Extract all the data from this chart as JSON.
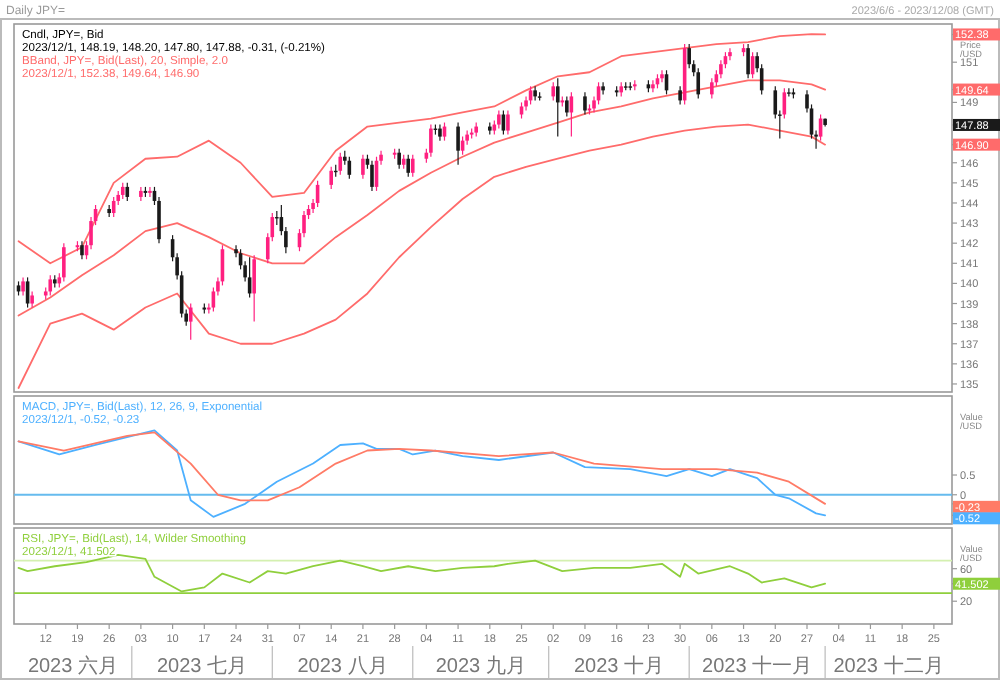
{
  "chart_data": [
    {
      "type": "candlestick",
      "title": "Daily JPY=",
      "subtitle": "2023/6/6 - 2023/12/08 (GMT)",
      "ylabel": "Price /USD",
      "tick_labels": "y",
      "xlim": [
        "2023-06-05",
        "2023-12-29"
      ],
      "ylim": [
        134.6,
        152.9
      ],
      "yticks": [
        135,
        136,
        137,
        138,
        139,
        140,
        141,
        142,
        143,
        144,
        145,
        146,
        149,
        151,
        152.38,
        149.64,
        147.88,
        {
          "value": 146.9,
          "label": "146.90"
        }
      ],
      "x": [
        "2023-06-06",
        "2023-06-07",
        "2023-06-08",
        "2023-06-09",
        "2023-06-12",
        "2023-06-13",
        "2023-06-14",
        "2023-06-15",
        "2023-06-16",
        "2023-06-19",
        "2023-06-20",
        "2023-06-21",
        "2023-06-22",
        "2023-06-23",
        "2023-06-26",
        "2023-06-27",
        "2023-06-28",
        "2023-06-29",
        "2023-06-30",
        "2023-07-03",
        "2023-07-04",
        "2023-07-05",
        "2023-07-06",
        "2023-07-07",
        "2023-07-10",
        "2023-07-11",
        "2023-07-12",
        "2023-07-13",
        "2023-07-14",
        "2023-07-17",
        "2023-07-18",
        "2023-07-19",
        "2023-07-20",
        "2023-07-21",
        "2023-07-24",
        "2023-07-25",
        "2023-07-26",
        "2023-07-27",
        "2023-07-28",
        "2023-07-31",
        "2023-08-01",
        "2023-08-02",
        "2023-08-03",
        "2023-08-04",
        "2023-08-07",
        "2023-08-08",
        "2023-08-09",
        "2023-08-10",
        "2023-08-11",
        "2023-08-14",
        "2023-08-15",
        "2023-08-16",
        "2023-08-17",
        "2023-08-18",
        "2023-08-21",
        "2023-08-22",
        "2023-08-23",
        "2023-08-24",
        "2023-08-25",
        "2023-08-28",
        "2023-08-29",
        "2023-08-30",
        "2023-08-31",
        "2023-09-01",
        "2023-09-04",
        "2023-09-05",
        "2023-09-06",
        "2023-09-07",
        "2023-09-08",
        "2023-09-11",
        "2023-09-12",
        "2023-09-13",
        "2023-09-14",
        "2023-09-15",
        "2023-09-18",
        "2023-09-19",
        "2023-09-20",
        "2023-09-21",
        "2023-09-22",
        "2023-09-25",
        "2023-09-26",
        "2023-09-27",
        "2023-09-28",
        "2023-09-29",
        "2023-10-02",
        "2023-10-03",
        "2023-10-04",
        "2023-10-05",
        "2023-10-06",
        "2023-10-09",
        "2023-10-10",
        "2023-10-11",
        "2023-10-12",
        "2023-10-13",
        "2023-10-16",
        "2023-10-17",
        "2023-10-18",
        "2023-10-19",
        "2023-10-20",
        "2023-10-23",
        "2023-10-24",
        "2023-10-25",
        "2023-10-26",
        "2023-10-27",
        "2023-10-30",
        "2023-10-31",
        "2023-11-01",
        "2023-11-02",
        "2023-11-03",
        "2023-11-06",
        "2023-11-07",
        "2023-11-08",
        "2023-11-09",
        "2023-11-10",
        "2023-11-13",
        "2023-11-14",
        "2023-11-15",
        "2023-11-16",
        "2023-11-17",
        "2023-11-20",
        "2023-11-21",
        "2023-11-22",
        "2023-11-23",
        "2023-11-24",
        "2023-11-27",
        "2023-11-28",
        "2023-11-29",
        "2023-11-30",
        "2023-12-01"
      ],
      "ohlc": [
        [
          139.9,
          140.1,
          139.4,
          139.6
        ],
        [
          139.6,
          140.3,
          139.4,
          140.1
        ],
        [
          140.1,
          140.3,
          138.8,
          139.0
        ],
        [
          139.0,
          139.6,
          138.8,
          139.4
        ],
        [
          139.4,
          139.8,
          139.2,
          139.6
        ],
        [
          139.6,
          140.4,
          139.4,
          140.2
        ],
        [
          140.2,
          140.4,
          139.8,
          140.0
        ],
        [
          140.0,
          140.5,
          139.8,
          140.3
        ],
        [
          140.3,
          142.0,
          140.1,
          141.8
        ],
        [
          141.8,
          142.1,
          141.6,
          141.9
        ],
        [
          141.9,
          142.1,
          141.2,
          141.4
        ],
        [
          141.4,
          142.1,
          141.2,
          141.9
        ],
        [
          141.9,
          143.3,
          141.7,
          143.1
        ],
        [
          143.1,
          143.9,
          142.9,
          143.7
        ],
        [
          143.7,
          143.9,
          143.3,
          143.5
        ],
        [
          143.5,
          144.3,
          143.3,
          144.1
        ],
        [
          144.1,
          144.6,
          143.9,
          144.4
        ],
        [
          144.4,
          145.0,
          144.2,
          144.8
        ],
        [
          144.8,
          145.0,
          144.1,
          144.3
        ],
        [
          144.3,
          144.8,
          144.1,
          144.6
        ],
        [
          144.6,
          144.8,
          144.3,
          144.5
        ],
        [
          144.5,
          144.8,
          144.3,
          144.6
        ],
        [
          144.6,
          144.8,
          143.9,
          144.1
        ],
        [
          144.1,
          144.3,
          142.0,
          142.2
        ],
        [
          142.2,
          142.4,
          141.1,
          141.3
        ],
        [
          141.3,
          141.5,
          140.2,
          140.4
        ],
        [
          140.4,
          140.6,
          138.3,
          138.5
        ],
        [
          138.5,
          138.7,
          137.9,
          138.1
        ],
        [
          138.1,
          139.0,
          137.2,
          138.8
        ],
        [
          138.8,
          139.0,
          138.5,
          138.7
        ],
        [
          138.7,
          139.0,
          138.5,
          138.8
        ],
        [
          138.8,
          139.8,
          138.6,
          139.6
        ],
        [
          139.6,
          140.3,
          139.4,
          140.1
        ],
        [
          140.1,
          141.9,
          139.9,
          141.7
        ],
        [
          141.7,
          141.9,
          141.3,
          141.5
        ],
        [
          141.5,
          141.7,
          140.7,
          140.9
        ],
        [
          140.9,
          141.1,
          140.1,
          140.3
        ],
        [
          140.3,
          141.3,
          139.3,
          139.5
        ],
        [
          139.5,
          141.4,
          138.1,
          141.2
        ],
        [
          141.2,
          142.5,
          141.0,
          142.3
        ],
        [
          142.3,
          143.5,
          142.1,
          143.3
        ],
        [
          143.3,
          143.6,
          142.9,
          143.3
        ],
        [
          143.3,
          143.9,
          142.4,
          142.6
        ],
        [
          142.6,
          142.8,
          141.5,
          141.8
        ],
        [
          141.8,
          142.7,
          141.6,
          142.5
        ],
        [
          142.5,
          143.6,
          142.3,
          143.4
        ],
        [
          143.4,
          143.9,
          143.2,
          143.7
        ],
        [
          143.7,
          144.2,
          143.5,
          144.0
        ],
        [
          144.0,
          145.1,
          143.8,
          144.9
        ],
        [
          144.9,
          145.8,
          144.7,
          145.6
        ],
        [
          145.6,
          145.9,
          145.3,
          145.6
        ],
        [
          145.6,
          146.5,
          145.4,
          146.3
        ],
        [
          146.3,
          146.6,
          145.9,
          146.1
        ],
        [
          146.1,
          146.3,
          145.2,
          145.4
        ],
        [
          145.4,
          146.4,
          145.2,
          146.2
        ],
        [
          146.2,
          146.4,
          145.7,
          145.9
        ],
        [
          145.9,
          146.1,
          144.6,
          144.8
        ],
        [
          144.8,
          146.3,
          144.6,
          146.1
        ],
        [
          146.1,
          146.6,
          145.9,
          146.4
        ],
        [
          146.4,
          146.7,
          146.2,
          146.5
        ],
        [
          146.5,
          146.7,
          145.7,
          145.9
        ],
        [
          145.9,
          146.4,
          145.7,
          146.2
        ],
        [
          146.2,
          146.4,
          145.3,
          145.5
        ],
        [
          145.5,
          146.4,
          145.3,
          146.2
        ],
        [
          146.2,
          146.7,
          146.0,
          146.5
        ],
        [
          146.5,
          147.9,
          146.3,
          147.7
        ],
        [
          147.7,
          147.9,
          147.4,
          147.7
        ],
        [
          147.7,
          147.9,
          147.1,
          147.3
        ],
        [
          147.3,
          148.0,
          147.1,
          147.8
        ],
        [
          147.8,
          148.0,
          145.9,
          146.6
        ],
        [
          146.6,
          147.3,
          146.4,
          147.1
        ],
        [
          147.1,
          147.6,
          146.9,
          147.4
        ],
        [
          147.4,
          147.7,
          147.2,
          147.5
        ],
        [
          147.5,
          148.0,
          147.3,
          147.8
        ],
        [
          147.8,
          148.0,
          147.4,
          147.6
        ],
        [
          147.6,
          148.1,
          147.4,
          147.9
        ],
        [
          147.9,
          148.6,
          147.7,
          148.4
        ],
        [
          148.4,
          148.6,
          147.4,
          147.6
        ],
        [
          147.6,
          148.6,
          147.4,
          148.4
        ],
        [
          148.4,
          149.0,
          148.2,
          148.8
        ],
        [
          148.8,
          149.3,
          148.6,
          149.1
        ],
        [
          149.1,
          149.8,
          148.9,
          149.6
        ],
        [
          149.6,
          149.8,
          149.1,
          149.3
        ],
        [
          149.3,
          149.5,
          149.1,
          149.3
        ],
        [
          149.3,
          150.0,
          149.1,
          149.8
        ],
        [
          149.8,
          150.2,
          147.3,
          149.0
        ],
        [
          149.0,
          149.3,
          148.8,
          149.1
        ],
        [
          149.1,
          149.3,
          148.3,
          148.5
        ],
        [
          148.5,
          149.5,
          147.3,
          149.3
        ],
        [
          149.3,
          149.5,
          148.4,
          148.6
        ],
        [
          148.6,
          148.9,
          148.4,
          148.7
        ],
        [
          148.7,
          149.3,
          148.5,
          149.1
        ],
        [
          149.1,
          150.0,
          148.9,
          149.8
        ],
        [
          149.8,
          150.0,
          149.4,
          149.6
        ],
        [
          149.6,
          149.8,
          149.3,
          149.5
        ],
        [
          149.5,
          150.0,
          149.3,
          149.8
        ],
        [
          149.8,
          150.0,
          149.6,
          149.8
        ],
        [
          149.8,
          150.0,
          149.6,
          149.8
        ],
        [
          149.8,
          150.1,
          149.6,
          149.9
        ],
        [
          149.9,
          150.1,
          149.5,
          149.7
        ],
        [
          149.7,
          150.1,
          149.5,
          149.9
        ],
        [
          149.9,
          150.4,
          149.7,
          150.2
        ],
        [
          150.2,
          150.6,
          150.0,
          150.4
        ],
        [
          150.4,
          150.6,
          149.4,
          149.6
        ],
        [
          149.6,
          149.8,
          148.9,
          149.1
        ],
        [
          149.1,
          151.9,
          148.9,
          151.7
        ],
        [
          151.7,
          151.9,
          150.7,
          150.9
        ],
        [
          150.9,
          151.1,
          150.3,
          150.5
        ],
        [
          150.5,
          150.7,
          149.2,
          149.4
        ],
        [
          149.4,
          150.2,
          149.2,
          150.0
        ],
        [
          150.0,
          150.6,
          149.8,
          150.4
        ],
        [
          150.4,
          151.1,
          150.2,
          150.9
        ],
        [
          150.9,
          151.5,
          150.7,
          151.3
        ],
        [
          151.3,
          151.7,
          151.1,
          151.5
        ],
        [
          151.5,
          151.9,
          151.3,
          151.7
        ],
        [
          151.7,
          151.9,
          150.2,
          150.4
        ],
        [
          150.4,
          151.5,
          150.2,
          151.3
        ],
        [
          151.3,
          151.5,
          150.5,
          150.7
        ],
        [
          150.7,
          150.9,
          149.4,
          149.6
        ],
        [
          149.6,
          149.8,
          148.2,
          148.4
        ],
        [
          148.4,
          148.6,
          147.2,
          148.4
        ],
        [
          148.4,
          149.7,
          148.2,
          149.5
        ],
        [
          149.5,
          149.7,
          149.3,
          149.5
        ],
        [
          149.5,
          149.7,
          149.2,
          149.4
        ],
        [
          149.4,
          149.6,
          148.5,
          148.7
        ],
        [
          148.7,
          148.9,
          147.2,
          147.4
        ],
        [
          147.4,
          147.6,
          146.7,
          147.3
        ],
        [
          147.3,
          148.4,
          147.1,
          148.2
        ],
        [
          148.19,
          148.2,
          147.8,
          147.88
        ]
      ],
      "colors": [
        "#1a1a1a",
        "#ff2080",
        "#1a1a1a",
        "#ff2080",
        "#ff2080",
        "#ff2080",
        "#1a1a1a",
        "#ff2080",
        "#ff2080",
        "#ff2080",
        "#1a1a1a",
        "#ff2080",
        "#ff2080",
        "#ff2080",
        "#1a1a1a",
        "#ff2080",
        "#ff2080",
        "#ff2080",
        "#1a1a1a",
        "#ff2080",
        "#1a1a1a",
        "#ff2080",
        "#1a1a1a",
        "#1a1a1a",
        "#1a1a1a",
        "#1a1a1a",
        "#1a1a1a",
        "#1a1a1a",
        "#ff2080",
        "#1a1a1a",
        "#ff2080",
        "#ff2080",
        "#ff2080",
        "#ff2080",
        "#1a1a1a",
        "#1a1a1a",
        "#1a1a1a",
        "#1a1a1a",
        "#ff2080",
        "#ff2080",
        "#ff2080",
        "#1a1a1a",
        "#1a1a1a",
        "#1a1a1a",
        "#ff2080",
        "#ff2080",
        "#ff2080",
        "#ff2080",
        "#ff2080",
        "#ff2080",
        "#1a1a1a",
        "#ff2080",
        "#1a1a1a",
        "#1a1a1a",
        "#ff2080",
        "#1a1a1a",
        "#1a1a1a",
        "#ff2080",
        "#ff2080",
        "#ff2080",
        "#1a1a1a",
        "#ff2080",
        "#1a1a1a",
        "#ff2080",
        "#ff2080",
        "#ff2080",
        "#1a1a1a",
        "#1a1a1a",
        "#ff2080",
        "#1a1a1a",
        "#ff2080",
        "#ff2080",
        "#ff2080",
        "#ff2080",
        "#1a1a1a",
        "#ff2080",
        "#ff2080",
        "#1a1a1a",
        "#ff2080",
        "#ff2080",
        "#ff2080",
        "#ff2080",
        "#1a1a1a",
        "#1a1a1a",
        "#ff2080",
        "#1a1a1a",
        "#ff2080",
        "#1a1a1a",
        "#ff2080",
        "#1a1a1a",
        "#ff2080",
        "#ff2080",
        "#ff2080",
        "#1a1a1a",
        "#1a1a1a",
        "#ff2080",
        "#1a1a1a",
        "#1a1a1a",
        "#ff2080",
        "#1a1a1a",
        "#ff2080",
        "#ff2080",
        "#ff2080",
        "#1a1a1a",
        "#1a1a1a",
        "#ff2080",
        "#1a1a1a",
        "#1a1a1a",
        "#1a1a1a",
        "#ff2080",
        "#ff2080",
        "#ff2080",
        "#ff2080",
        "#ff2080",
        "#ff2080",
        "#1a1a1a",
        "#ff2080",
        "#1a1a1a",
        "#1a1a1a",
        "#1a1a1a",
        "#1a1a1a",
        "#ff2080",
        "#1a1a1a",
        "#1a1a1a",
        "#1a1a1a",
        "#1a1a1a",
        "#1a1a1a",
        "#ff2080",
        "#1a1a1a"
      ],
      "series": [
        {
          "type": "line",
          "color": "#ff6b6b",
          "x": [
            "2023-06-06",
            "2023-06-13",
            "2023-06-20",
            "2023-06-27",
            "2023-07-04",
            "2023-07-11",
            "2023-07-18",
            "2023-07-25",
            "2023-08-01",
            "2023-08-08",
            "2023-08-15",
            "2023-08-22",
            "2023-08-29",
            "2023-09-05",
            "2023-09-12",
            "2023-09-19",
            "2023-09-26",
            "2023-10-03",
            "2023-10-10",
            "2023-10-17",
            "2023-10-24",
            "2023-10-31",
            "2023-11-07",
            "2023-11-14",
            "2023-11-21",
            "2023-11-28",
            "2023-12-01"
          ],
          "values": [
            142.1,
            141.0,
            141.8,
            145.0,
            146.2,
            146.3,
            147.1,
            146.0,
            144.3,
            144.5,
            146.6,
            147.8,
            148.0,
            148.2,
            148.5,
            148.8,
            149.6,
            150.3,
            150.5,
            151.3,
            151.5,
            151.7,
            151.9,
            152.0,
            152.3,
            152.4,
            152.38
          ]
        },
        {
          "type": "line",
          "color": "#ff6b6b",
          "x": [
            "2023-06-06",
            "2023-06-13",
            "2023-06-20",
            "2023-06-27",
            "2023-07-04",
            "2023-07-11",
            "2023-07-18",
            "2023-07-25",
            "2023-08-01",
            "2023-08-08",
            "2023-08-15",
            "2023-08-22",
            "2023-08-29",
            "2023-09-05",
            "2023-09-12",
            "2023-09-19",
            "2023-09-26",
            "2023-10-03",
            "2023-10-10",
            "2023-10-17",
            "2023-10-24",
            "2023-10-31",
            "2023-11-07",
            "2023-11-14",
            "2023-11-21",
            "2023-11-28",
            "2023-12-01"
          ],
          "values": [
            138.4,
            139.3,
            140.4,
            141.4,
            142.6,
            143.0,
            142.3,
            141.5,
            141.0,
            141.0,
            142.3,
            143.4,
            144.6,
            145.5,
            146.3,
            147.0,
            147.5,
            148.0,
            148.5,
            148.8,
            149.2,
            149.5,
            149.8,
            150.1,
            150.1,
            149.9,
            149.64
          ]
        },
        {
          "type": "line",
          "color": "#ff6b6b",
          "x": [
            "2023-06-06",
            "2023-06-13",
            "2023-06-20",
            "2023-06-27",
            "2023-07-04",
            "2023-07-11",
            "2023-07-18",
            "2023-07-25",
            "2023-08-01",
            "2023-08-08",
            "2023-08-15",
            "2023-08-22",
            "2023-08-29",
            "2023-09-05",
            "2023-09-12",
            "2023-09-19",
            "2023-09-26",
            "2023-10-03",
            "2023-10-10",
            "2023-10-17",
            "2023-10-24",
            "2023-10-31",
            "2023-11-07",
            "2023-11-14",
            "2023-11-21",
            "2023-11-28",
            "2023-12-01"
          ],
          "values": [
            134.8,
            138.0,
            138.5,
            137.7,
            138.8,
            139.5,
            137.5,
            137.0,
            137.0,
            137.5,
            138.2,
            139.5,
            141.3,
            142.8,
            144.2,
            145.3,
            145.8,
            146.2,
            146.6,
            146.9,
            147.3,
            147.6,
            147.8,
            147.9,
            147.6,
            147.3,
            146.9
          ]
        }
      ],
      "annotations": [
        "Cndl, JPY=, Bid",
        "2023/12/1, 148.19, 148.20, 147.80, 147.88, -0.31, (-0.21%)",
        "BBand, JPY=, Bid(Last), 20, Simple, 2.0",
        "2023/12/1, 152.38, 149.64, 146.90"
      ]
    },
    {
      "type": "line",
      "title": "MACD, JPY=, Bid(Last), 12, 26, 9, Exponential",
      "subtitle": "2023/12/1, -0.52, -0.23",
      "ylabel": "Value /USD",
      "tick_labels": "y",
      "xlim": [
        "2023-06-05",
        "2023-12-29"
      ],
      "ylim": [
        -0.74,
        2.5
      ],
      "yticks": [
        0.5,
        0,
        -0.23,
        -0.52
      ],
      "series": [
        {
          "color": "#4db0ff",
          "x": [
            "2023-06-06",
            "2023-06-15",
            "2023-06-23",
            "2023-07-06",
            "2023-07-11",
            "2023-07-14",
            "2023-07-19",
            "2023-07-26",
            "2023-08-02",
            "2023-08-10",
            "2023-08-16",
            "2023-08-21",
            "2023-08-24",
            "2023-08-29",
            "2023-09-01",
            "2023-09-06",
            "2023-09-12",
            "2023-09-20",
            "2023-10-02",
            "2023-10-09",
            "2023-10-19",
            "2023-10-27",
            "2023-11-01",
            "2023-11-06",
            "2023-11-10",
            "2023-11-16",
            "2023-11-20",
            "2023-11-23",
            "2023-11-29",
            "2023-12-01"
          ],
          "values": [
            1.35,
            1.02,
            1.26,
            1.63,
            1.12,
            -0.14,
            -0.56,
            -0.23,
            0.33,
            0.79,
            1.26,
            1.3,
            1.16,
            1.16,
            1.02,
            1.12,
            0.98,
            0.88,
            1.07,
            0.7,
            0.65,
            0.47,
            0.65,
            0.47,
            0.65,
            0.42,
            0,
            -0.09,
            -0.47,
            -0.52
          ]
        },
        {
          "color": "#ff7b66",
          "x": [
            "2023-06-06",
            "2023-06-16",
            "2023-06-30",
            "2023-07-06",
            "2023-07-14",
            "2023-07-20",
            "2023-07-25",
            "2023-07-31",
            "2023-08-07",
            "2023-08-15",
            "2023-08-22",
            "2023-08-29",
            "2023-09-05",
            "2023-09-20",
            "2023-10-02",
            "2023-10-11",
            "2023-10-26",
            "2023-11-07",
            "2023-11-16",
            "2023-11-23",
            "2023-12-01"
          ],
          "values": [
            1.35,
            1.12,
            1.49,
            1.58,
            0.79,
            0,
            -0.14,
            -0.14,
            0.19,
            0.79,
            1.12,
            1.16,
            1.12,
            0.98,
            1.07,
            0.79,
            0.65,
            0.65,
            0.56,
            0.33,
            -0.23
          ]
        }
      ],
      "ref_lines": [
        {
          "axis": "y",
          "value": 0,
          "color": "#66bbee"
        }
      ]
    },
    {
      "type": "line",
      "title": "RSI, JPY=, Bid(Last), 14, Wilder Smoothing",
      "subtitle": "2023/12/1, 41.502",
      "ylabel": "Value /USD",
      "xlim": [
        "2023-06-05",
        "2023-12-29"
      ],
      "ylim": [
        -8,
        110
      ],
      "yticks": [
        60,
        20,
        41.502
      ],
      "xticks": [
        {
          "value": "2023-06-12",
          "label": "12"
        },
        {
          "value": "2023-06-19",
          "label": "19"
        },
        {
          "value": "2023-06-26",
          "label": "26"
        },
        {
          "value": "2023-07-03",
          "label": "03"
        },
        {
          "value": "2023-07-10",
          "label": "10"
        },
        {
          "value": "2023-07-17",
          "label": "17"
        },
        {
          "value": "2023-07-24",
          "label": "24"
        },
        {
          "value": "2023-07-31",
          "label": "31"
        },
        {
          "value": "2023-08-07",
          "label": "07"
        },
        {
          "value": "2023-08-14",
          "label": "14"
        },
        {
          "value": "2023-08-21",
          "label": "21"
        },
        {
          "value": "2023-08-28",
          "label": "28"
        },
        {
          "value": "2023-09-04",
          "label": "04"
        },
        {
          "value": "2023-09-11",
          "label": "11"
        },
        {
          "value": "2023-09-18",
          "label": "18"
        },
        {
          "value": "2023-09-25",
          "label": "25"
        },
        {
          "value": "2023-10-02",
          "label": "02"
        },
        {
          "value": "2023-10-09",
          "label": "09"
        },
        {
          "value": "2023-10-16",
          "label": "16"
        },
        {
          "value": "2023-10-23",
          "label": "23"
        },
        {
          "value": "2023-10-30",
          "label": "30"
        },
        {
          "value": "2023-11-06",
          "label": "06"
        },
        {
          "value": "2023-11-13",
          "label": "13"
        },
        {
          "value": "2023-11-20",
          "label": "20"
        },
        {
          "value": "2023-11-27",
          "label": "27"
        },
        {
          "value": "2023-12-04",
          "label": "04"
        },
        {
          "value": "2023-12-11",
          "label": "11"
        },
        {
          "value": "2023-12-18",
          "label": "18"
        },
        {
          "value": "2023-12-25",
          "label": "25"
        }
      ],
      "series": [
        {
          "color": "#8fcf3c",
          "x": [
            "2023-06-06",
            "2023-06-08",
            "2023-06-14",
            "2023-06-21",
            "2023-06-28",
            "2023-07-04",
            "2023-07-06",
            "2023-07-12",
            "2023-07-17",
            "2023-07-21",
            "2023-07-27",
            "2023-07-31",
            "2023-08-04",
            "2023-08-10",
            "2023-08-16",
            "2023-08-21",
            "2023-08-25",
            "2023-08-31",
            "2023-09-06",
            "2023-09-12",
            "2023-09-19",
            "2023-09-22",
            "2023-09-28",
            "2023-10-04",
            "2023-10-11",
            "2023-10-19",
            "2023-10-26",
            "2023-10-30",
            "2023-10-31",
            "2023-11-03",
            "2023-11-10",
            "2023-11-14",
            "2023-11-17",
            "2023-11-22",
            "2023-11-28",
            "2023-12-01"
          ],
          "values": [
            61,
            57,
            63,
            68,
            77,
            72,
            50,
            32,
            37,
            54,
            43,
            57,
            54,
            63,
            70,
            63,
            57,
            63,
            57,
            61,
            63,
            66,
            70,
            57,
            61,
            61,
            66,
            50,
            66,
            54,
            63,
            54,
            43,
            48,
            37,
            41.502
          ]
        }
      ],
      "ref_lines": [
        {
          "axis": "y",
          "value": 70,
          "color": "#d4f0b0"
        },
        {
          "axis": "y",
          "value": 30,
          "color": "#8fcf3c"
        }
      ],
      "annotations": [
        "2023 六月",
        "2023 七月",
        "2023 八月",
        "2023 九月",
        "2023 十月",
        "2023 十一月",
        "2023 十二月"
      ]
    }
  ]
}
